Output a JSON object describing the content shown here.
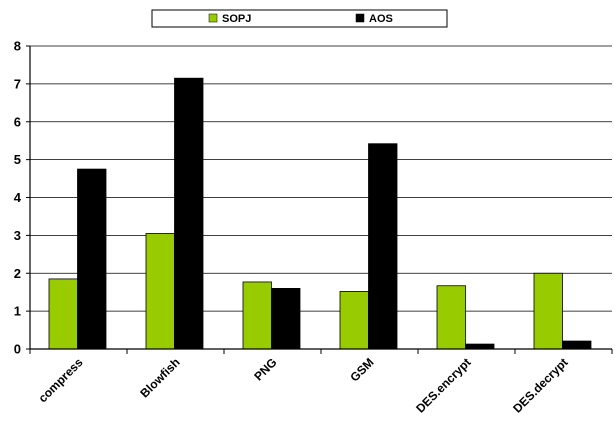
{
  "chart_data": {
    "type": "bar",
    "categories": [
      "compress",
      "Blowfish",
      "PNG",
      "GSM",
      "DES.encrypt",
      "DES.decrypt"
    ],
    "series": [
      {
        "name": "SOPJ",
        "color": "#99cc00",
        "values": [
          1.85,
          3.05,
          1.77,
          1.52,
          1.67,
          2.0
        ]
      },
      {
        "name": "AOS",
        "color": "#000000",
        "values": [
          4.75,
          7.15,
          1.6,
          5.42,
          0.13,
          0.21
        ]
      }
    ],
    "yticks": [
      "0",
      "1",
      "2",
      "3",
      "4",
      "5",
      "6",
      "7",
      "8"
    ],
    "ylim": [
      0,
      8
    ],
    "grid": true,
    "legend_position": "top-center",
    "title": "",
    "xlabel": "",
    "ylabel": ""
  }
}
